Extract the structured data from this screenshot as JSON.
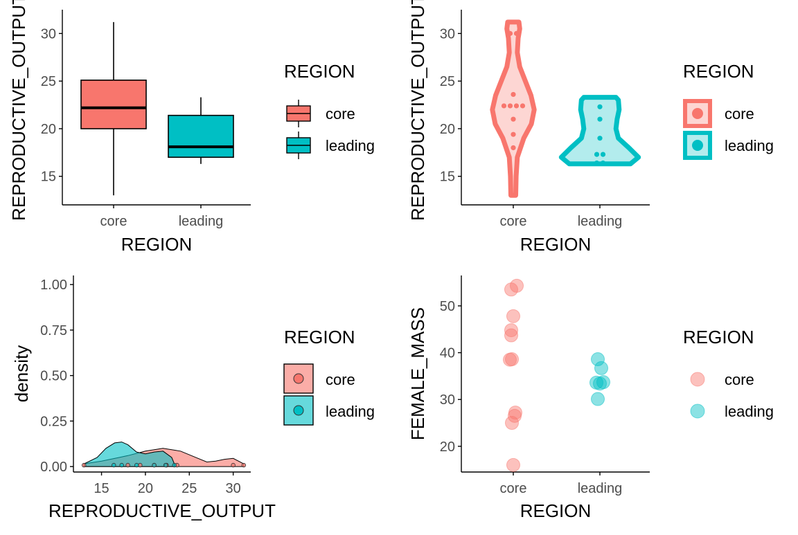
{
  "colors": {
    "core": "#F8766D",
    "leading": "#00BFC4"
  },
  "chart_data": [
    {
      "type": "boxplot",
      "xlabel": "REGION",
      "ylabel": "REPRODUCTIVE_OUTPUT",
      "ylim": [
        12,
        32.5
      ],
      "y_ticks": [
        15,
        20,
        25,
        30
      ],
      "x_ticks": [
        "core",
        "leading"
      ],
      "legend": {
        "title": "REGION",
        "entries": [
          "core",
          "leading"
        ],
        "placement": "right"
      },
      "groups": [
        {
          "name": "core",
          "min": 13,
          "q1": 20,
          "median": 22.2,
          "q3": 25.1,
          "max": 31.2
        },
        {
          "name": "leading",
          "min": 16.3,
          "q1": 17,
          "median": 18.1,
          "q3": 21.4,
          "max": 23.3
        }
      ]
    },
    {
      "type": "violin",
      "xlabel": "REGION",
      "ylabel": "REPRODUCTIVE_OUTPUT",
      "ylim": [
        12,
        32.5
      ],
      "y_ticks": [
        15,
        20,
        25,
        30
      ],
      "x_ticks": [
        "core",
        "leading"
      ],
      "legend": {
        "title": "REGION",
        "entries": [
          "core",
          "leading"
        ],
        "placement": "right"
      },
      "groups": [
        {
          "name": "core",
          "points": [
            30,
            30,
            23.6,
            22.4,
            22.4,
            22.4,
            22.4,
            21,
            19.4,
            18
          ],
          "profile": [
            [
              13,
              0.06
            ],
            [
              15,
              0.07
            ],
            [
              17,
              0.1
            ],
            [
              19,
              0.26
            ],
            [
              20.5,
              0.45
            ],
            [
              22,
              0.52
            ],
            [
              23.5,
              0.44
            ],
            [
              25,
              0.3
            ],
            [
              26.5,
              0.16
            ],
            [
              28,
              0.1
            ],
            [
              29.5,
              0.12
            ],
            [
              30.5,
              0.16
            ],
            [
              31.2,
              0.14
            ]
          ]
        },
        {
          "name": "leading",
          "points": [
            22.3,
            21,
            19,
            17.3,
            17.3,
            16.4,
            16.4
          ],
          "profile": [
            [
              16.3,
              0.76
            ],
            [
              17,
              0.96
            ],
            [
              18,
              0.72
            ],
            [
              19,
              0.46
            ],
            [
              20,
              0.4
            ],
            [
              21,
              0.43
            ],
            [
              22,
              0.48
            ],
            [
              23,
              0.46
            ],
            [
              23.3,
              0.4
            ]
          ]
        }
      ]
    },
    {
      "type": "area",
      "xlabel": "REPRODUCTIVE_OUTPUT",
      "ylabel": "density",
      "xlim": [
        11.8,
        32
      ],
      "ylim": [
        -0.03,
        1.05
      ],
      "x_ticks": [
        15,
        20,
        25,
        30
      ],
      "y_ticks": [
        "0.00",
        "0.25",
        "0.50",
        "0.75",
        "1.00"
      ],
      "legend": {
        "title": "REGION",
        "entries": [
          "core",
          "leading"
        ],
        "placement": "right"
      },
      "series": [
        {
          "name": "core",
          "x": [
            13,
            15,
            17,
            18,
            20,
            22,
            24,
            26,
            27,
            28,
            29,
            30,
            31.2
          ],
          "y": [
            0.015,
            0.03,
            0.05,
            0.06,
            0.085,
            0.1,
            0.085,
            0.045,
            0.025,
            0.03,
            0.04,
            0.045,
            0.015
          ]
        },
        {
          "name": "leading",
          "x": [
            13,
            14.5,
            15.5,
            16.5,
            17.3,
            18,
            19,
            20,
            21,
            22,
            23,
            23.3
          ],
          "y": [
            0.015,
            0.05,
            0.1,
            0.13,
            0.135,
            0.12,
            0.08,
            0.07,
            0.08,
            0.085,
            0.05,
            0.015
          ]
        }
      ],
      "rug_points": {
        "core": [
          13,
          18,
          19.4,
          21,
          22.4,
          22.4,
          23.6,
          30,
          31.2
        ],
        "leading": [
          16.4,
          17.3,
          19,
          21,
          22.3,
          23.3
        ]
      }
    },
    {
      "type": "scatter",
      "xlabel": "REGION",
      "ylabel": "FEMALE_MASS",
      "ylim": [
        14.5,
        56.5
      ],
      "y_ticks": [
        20,
        30,
        40,
        50
      ],
      "x_ticks": [
        "core",
        "leading"
      ],
      "legend": {
        "title": "REGION",
        "entries": [
          "core",
          "leading"
        ],
        "placement": "right"
      },
      "series": [
        {
          "name": "core",
          "points": [
            [
              -0.03,
              53.5
            ],
            [
              0.05,
              54.3
            ],
            [
              0.0,
              47.8
            ],
            [
              -0.03,
              44.8
            ],
            [
              -0.03,
              43.7
            ],
            [
              -0.05,
              38.5
            ],
            [
              -0.02,
              38.6
            ],
            [
              0.03,
              27.2
            ],
            [
              0.02,
              26.5
            ],
            [
              -0.02,
              25
            ],
            [
              0.0,
              16
            ]
          ]
        },
        {
          "name": "leading",
          "points": [
            [
              -0.03,
              38.6
            ],
            [
              0.02,
              36.7
            ],
            [
              -0.05,
              33.6
            ],
            [
              0.05,
              33.7
            ],
            [
              0.0,
              33.4
            ],
            [
              -0.03,
              30.1
            ]
          ]
        }
      ]
    }
  ]
}
